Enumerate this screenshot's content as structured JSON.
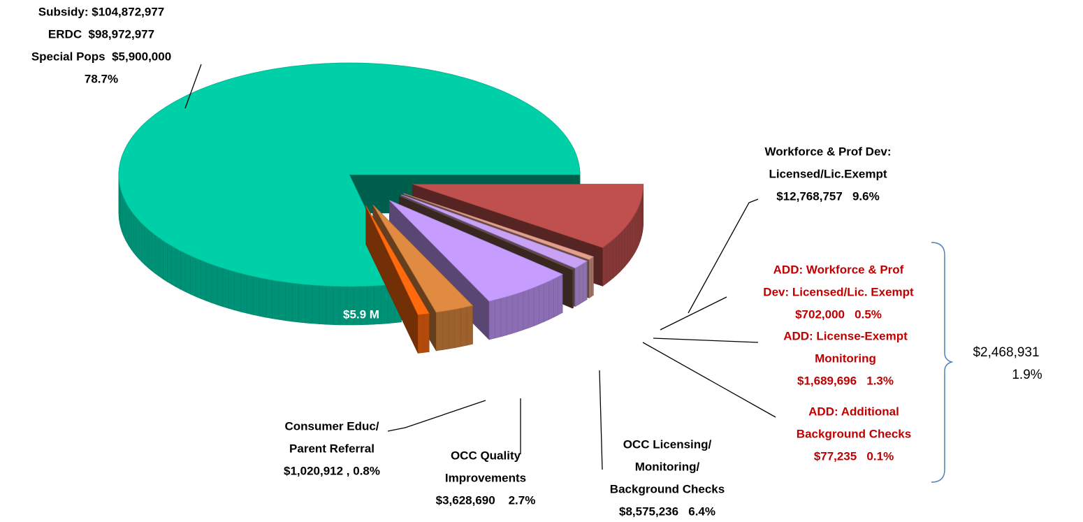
{
  "chart_data": {
    "type": "pie3d",
    "labels": [
      [
        "Workforce & Prof Dev:",
        "Licensed/Lic.Exempt"
      ],
      [
        "ADD: Workforce & Prof",
        "Dev: Licensed/Lic. Exempt"
      ],
      [
        "ADD: License-Exempt",
        "Monitoring"
      ],
      [
        "ADD: Additional",
        "Background Checks"
      ],
      [
        "OCC Licensing/",
        "Monitoring/",
        "Background Checks"
      ],
      [
        "OCC Quality",
        "Improvements"
      ],
      [
        "Consumer Educ/",
        "Parent Referral"
      ],
      [
        "Subsidy: $104,872,977",
        "ERDC  $98,972,977",
        "Special Pops  $5,900,000"
      ]
    ],
    "values": [
      9.6,
      0.5,
      1.3,
      0.1,
      6.4,
      2.7,
      0.8,
      78.7
    ],
    "value_labels": [
      "$12,768,757   9.6%",
      "$702,000   0.5%",
      "$1,689,696   1.3%",
      "$77,235   0.1%",
      "$8,575,236   6.4%",
      "$3,628,690    2.7%",
      "$1,020,912 , 0.8%",
      "78.7%"
    ],
    "colors": [
      "#c0504d",
      "#e3a08e",
      "#c9a2f5",
      "#7a5646",
      "#c79cff",
      "#e08a42",
      "#ff6a0e",
      "#00d0a8"
    ],
    "label_colors": [
      "#000000",
      "#c00000",
      "#c00000",
      "#c00000",
      "#000000",
      "#000000",
      "#000000",
      "#000000"
    ],
    "annotations": [
      "$5.9 M",
      "$2,468,931",
      "1.9%"
    ]
  }
}
